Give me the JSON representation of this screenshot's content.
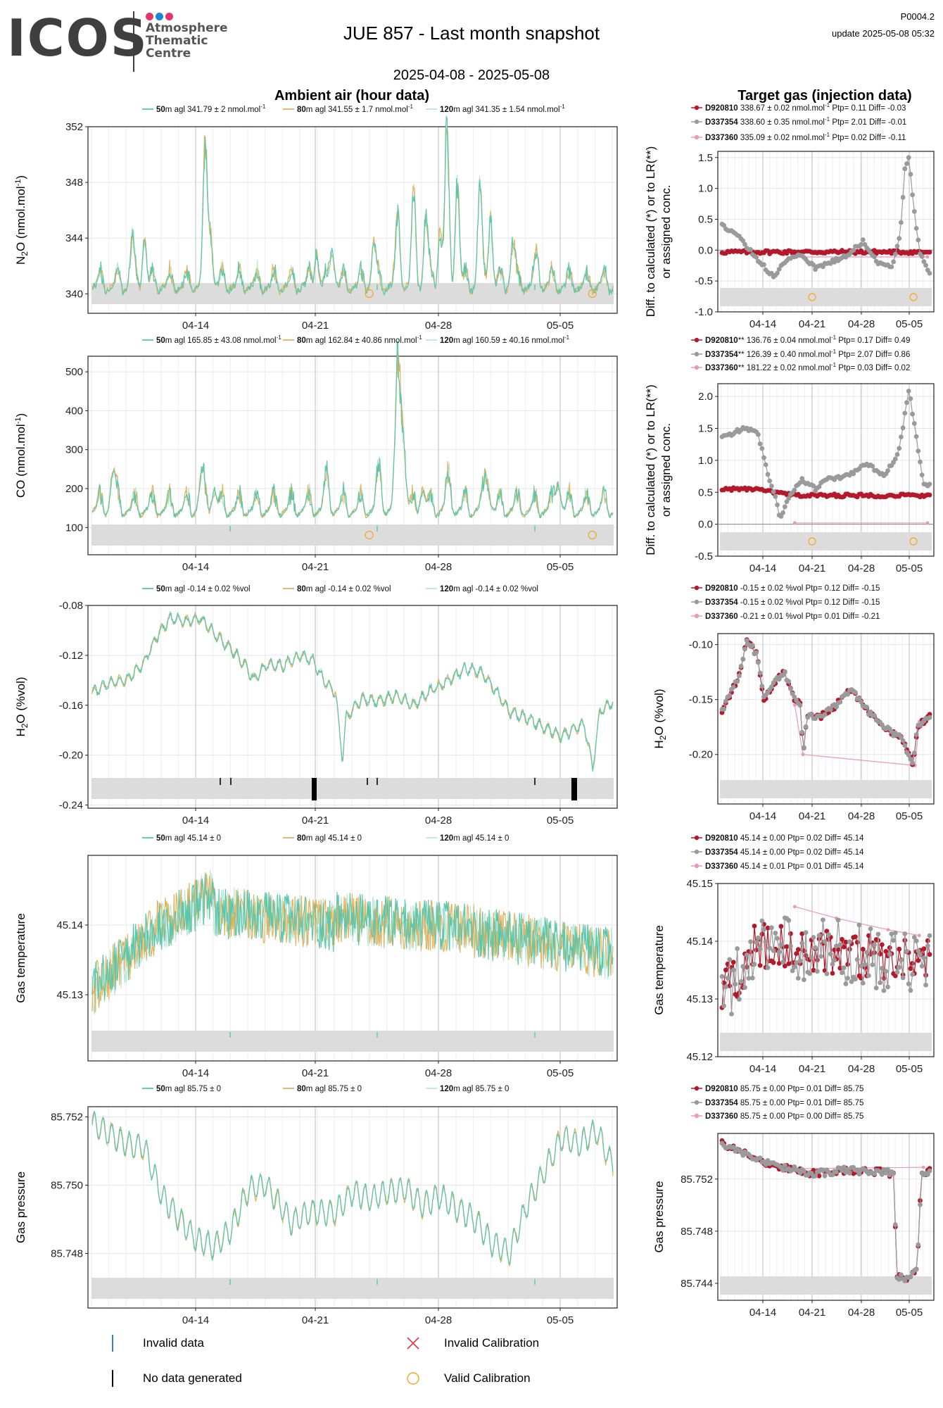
{
  "header": {
    "logo_text": "ICOS",
    "logo_subtitle": [
      "Atmosphere",
      "Thematic",
      "Centre"
    ],
    "title": "JUE 857 - Last month snapshot",
    "code": "P0004.2",
    "update": "update  2025-05-08 05:32",
    "date_range": "2025-04-08 - 2025-05-08",
    "left_column_title": "Ambient air (hour data)",
    "right_column_title": "Target gas (injection data)"
  },
  "colors": {
    "logo_dots": [
      "#e6336f",
      "#1a88d6",
      "#e6336f"
    ],
    "h50": "#5cc6ab",
    "h80": "#e3b35d",
    "h120": "#b9e8da",
    "d920810": "#b5182b",
    "d337354": "#9a9a9a",
    "d337360": "#e69ac0",
    "band": "#dcdcdc",
    "valid_calibration": "#f5a623",
    "invalid_calibration": "#e8333e",
    "invalid_data": "#3b7fd8",
    "no_data": "#000000"
  },
  "x_ticks": [
    "04-14",
    "04-21",
    "04-28",
    "05-05"
  ],
  "legend": {
    "invalid_data": "Invalid data",
    "no_data": "No data generated",
    "invalid_calibration": "Invalid Calibration",
    "valid_calibration": "Valid Calibration"
  },
  "chart_data": [
    {
      "type": "line",
      "panel": "ambient",
      "ylabel": "N2O (nmol.mol-1)",
      "ylim": [
        338.6,
        352.0
      ],
      "yticks": [
        "340",
        "344",
        "348",
        "352"
      ],
      "series": [
        {
          "name": "50m agl 341.79 ± 2 nmol.mol-1",
          "mean": 341.79
        },
        {
          "name": "80m agl 341.55 ± 1.7 nmol.mol-1",
          "mean": 341.55
        },
        {
          "name": "120m agl 341.35 ± 1.54 nmol.mol-1",
          "mean": 341.35
        }
      ],
      "legend_texts": [
        {
          "bold": "50",
          "rest": "m agl 341.79 ± 2 nmol.mol",
          "sup": "-1"
        },
        {
          "bold": "80",
          "rest": "m agl 341.55 ± 1.7 nmol.mol",
          "sup": "-1"
        },
        {
          "bold": "120",
          "rest": "m agl 341.35 ± 1.54 nmol.mol",
          "sup": "-1"
        }
      ],
      "valid_calibration_days": [
        12.95,
        25.6
      ]
    },
    {
      "type": "scatter",
      "panel": "target",
      "ylabel": "Diff. to calculated (*) or to LR(**) or assigned conc.",
      "ylim": [
        -1.0,
        1.6
      ],
      "yticks": [
        "-1.0",
        "-0.5",
        "0.0",
        "0.5",
        "1.0",
        "1.5"
      ],
      "legend_texts": [
        {
          "bold": "D920810",
          "rest": " 338.67 ± 0.02 nmol.mol",
          "sup": "-1",
          "tail": " Ptp= 0.11 Diff= -0.03"
        },
        {
          "bold": "D337354",
          "rest": " 338.60 ± 0.35 nmol.mol",
          "sup": "-1",
          "tail": " Ptp= 2.01 Diff= -0.01"
        },
        {
          "bold": "D337360",
          "rest": " 335.09 ± 0.02 nmol.mol",
          "sup": "-1",
          "tail": " Ptp= 0.02 Diff= -0.11"
        }
      ],
      "valid_calibration_days": [
        12.95,
        25.6
      ]
    },
    {
      "type": "line",
      "panel": "ambient",
      "ylabel": "CO (nmol.mol-1)",
      "ylim": [
        30,
        540
      ],
      "yticks": [
        "100",
        "200",
        "300",
        "400",
        "500"
      ],
      "legend_texts": [
        {
          "bold": "50",
          "rest": "m agl 165.85 ± 43.08 nmol.mol",
          "sup": "-1"
        },
        {
          "bold": "80",
          "rest": "m agl 162.84 ± 40.86 nmol.mol",
          "sup": "-1"
        },
        {
          "bold": "120",
          "rest": "m agl 160.59 ± 40.16 nmol.mol",
          "sup": "-1"
        }
      ],
      "valid_calibration_days": [
        12.95,
        25.6
      ]
    },
    {
      "type": "scatter",
      "panel": "target",
      "ylabel": "Diff. to calculated (*) or to LR(**) or assigned conc.",
      "ylim": [
        -0.5,
        2.2
      ],
      "yticks": [
        "-0.5",
        "0.0",
        "0.5",
        "1.0",
        "1.5",
        "2.0"
      ],
      "legend_texts": [
        {
          "bold": "D920810",
          "rest": "** 136.76 ± 0.04 nmol.mol",
          "sup": "-1",
          "tail": " Ptp= 0.17 Diff= 0.49"
        },
        {
          "bold": "D337354",
          "rest": "** 126.39 ± 0.40 nmol.mol",
          "sup": "-1",
          "tail": " Ptp= 2.07 Diff= 0.86"
        },
        {
          "bold": "D337360",
          "rest": "** 181.22 ± 0.02 nmol.mol",
          "sup": "-1",
          "tail": " Ptp= 0.03 Diff= 0.02"
        }
      ],
      "valid_calibration_days": [
        12.95,
        25.6
      ]
    },
    {
      "type": "line",
      "panel": "ambient",
      "ylabel": "H2O (%vol)",
      "ylim": [
        -0.2425,
        -0.08
      ],
      "yticks": [
        "-0.24",
        "-0.20",
        "-0.16",
        "-0.12",
        "-0.08"
      ],
      "legend_texts": [
        {
          "bold": "50",
          "rest": "m agl -0.14 ± 0.02 %vol",
          "sup": ""
        },
        {
          "bold": "80",
          "rest": "m agl -0.14 ± 0.02 %vol",
          "sup": ""
        },
        {
          "bold": "120",
          "rest": "m agl -0.14 ± 0.02 %vol",
          "sup": ""
        }
      ]
    },
    {
      "type": "scatter",
      "panel": "target",
      "ylabel": "H2O (%vol)",
      "ylim": [
        -0.245,
        -0.09
      ],
      "yticks": [
        "-0.20",
        "-0.15",
        "-0.10"
      ],
      "legend_texts": [
        {
          "bold": "D920810",
          "rest": " -0.15 ± 0.02 %vol Ptp= 0.12 Diff= -0.15",
          "sup": "",
          "tail": ""
        },
        {
          "bold": "D337354",
          "rest": " -0.15 ± 0.02 %vol Ptp= 0.12 Diff= -0.15",
          "sup": "",
          "tail": ""
        },
        {
          "bold": "D337360",
          "rest": " -0.21 ± 0.01 %vol Ptp= 0.01 Diff= -0.21",
          "sup": "",
          "tail": ""
        }
      ]
    },
    {
      "type": "line",
      "panel": "ambient",
      "ylabel": "Gas temperature",
      "ylim": [
        45.1205,
        45.15
      ],
      "yticks": [
        "45.13",
        "45.14"
      ],
      "legend_texts": [
        {
          "bold": "50",
          "rest": "m agl 45.14 ± 0",
          "sup": ""
        },
        {
          "bold": "80",
          "rest": "m agl 45.14 ± 0",
          "sup": ""
        },
        {
          "bold": "120",
          "rest": "m agl 45.14 ± 0",
          "sup": ""
        }
      ]
    },
    {
      "type": "scatter",
      "panel": "target",
      "ylabel": "Gas temperature",
      "ylim": [
        45.12,
        45.15
      ],
      "yticks": [
        "45.12",
        "45.13",
        "45.14",
        "45.15"
      ],
      "legend_texts": [
        {
          "bold": "D920810",
          "rest": " 45.14 ± 0.00  Ptp= 0.02 Diff= 45.14",
          "sup": "",
          "tail": ""
        },
        {
          "bold": "D337354",
          "rest": " 45.14 ± 0.00  Ptp= 0.02 Diff= 45.14",
          "sup": "",
          "tail": ""
        },
        {
          "bold": "D337360",
          "rest": " 45.14 ± 0.01  Ptp= 0.01 Diff= 45.14",
          "sup": "",
          "tail": ""
        }
      ]
    },
    {
      "type": "line",
      "panel": "ambient",
      "ylabel": "Gas pressure",
      "ylim": [
        85.7464,
        85.7523
      ],
      "yticks": [
        "85.748",
        "85.750",
        "85.752"
      ],
      "legend_texts": [
        {
          "bold": "50",
          "rest": "m agl 85.75 ± 0",
          "sup": ""
        },
        {
          "bold": "80",
          "rest": "m agl 85.75 ± 0",
          "sup": ""
        },
        {
          "bold": "120",
          "rest": "m agl 85.75 ± 0",
          "sup": ""
        }
      ]
    },
    {
      "type": "scatter",
      "panel": "target",
      "ylabel": "Gas pressure",
      "ylim": [
        85.7427,
        85.7555
      ],
      "yticks": [
        "85.744",
        "85.748",
        "85.752"
      ],
      "legend_texts": [
        {
          "bold": "D920810",
          "rest": " 85.75 ± 0.00  Ptp= 0.01 Diff= 85.75",
          "sup": "",
          "tail": ""
        },
        {
          "bold": "D337354",
          "rest": " 85.75 ± 0.00  Ptp= 0.01 Diff= 85.75",
          "sup": "",
          "tail": ""
        },
        {
          "bold": "D337360",
          "rest": " 85.75 ± 0.00  Ptp= 0.00 Diff= 85.75",
          "sup": "",
          "tail": ""
        }
      ]
    }
  ]
}
